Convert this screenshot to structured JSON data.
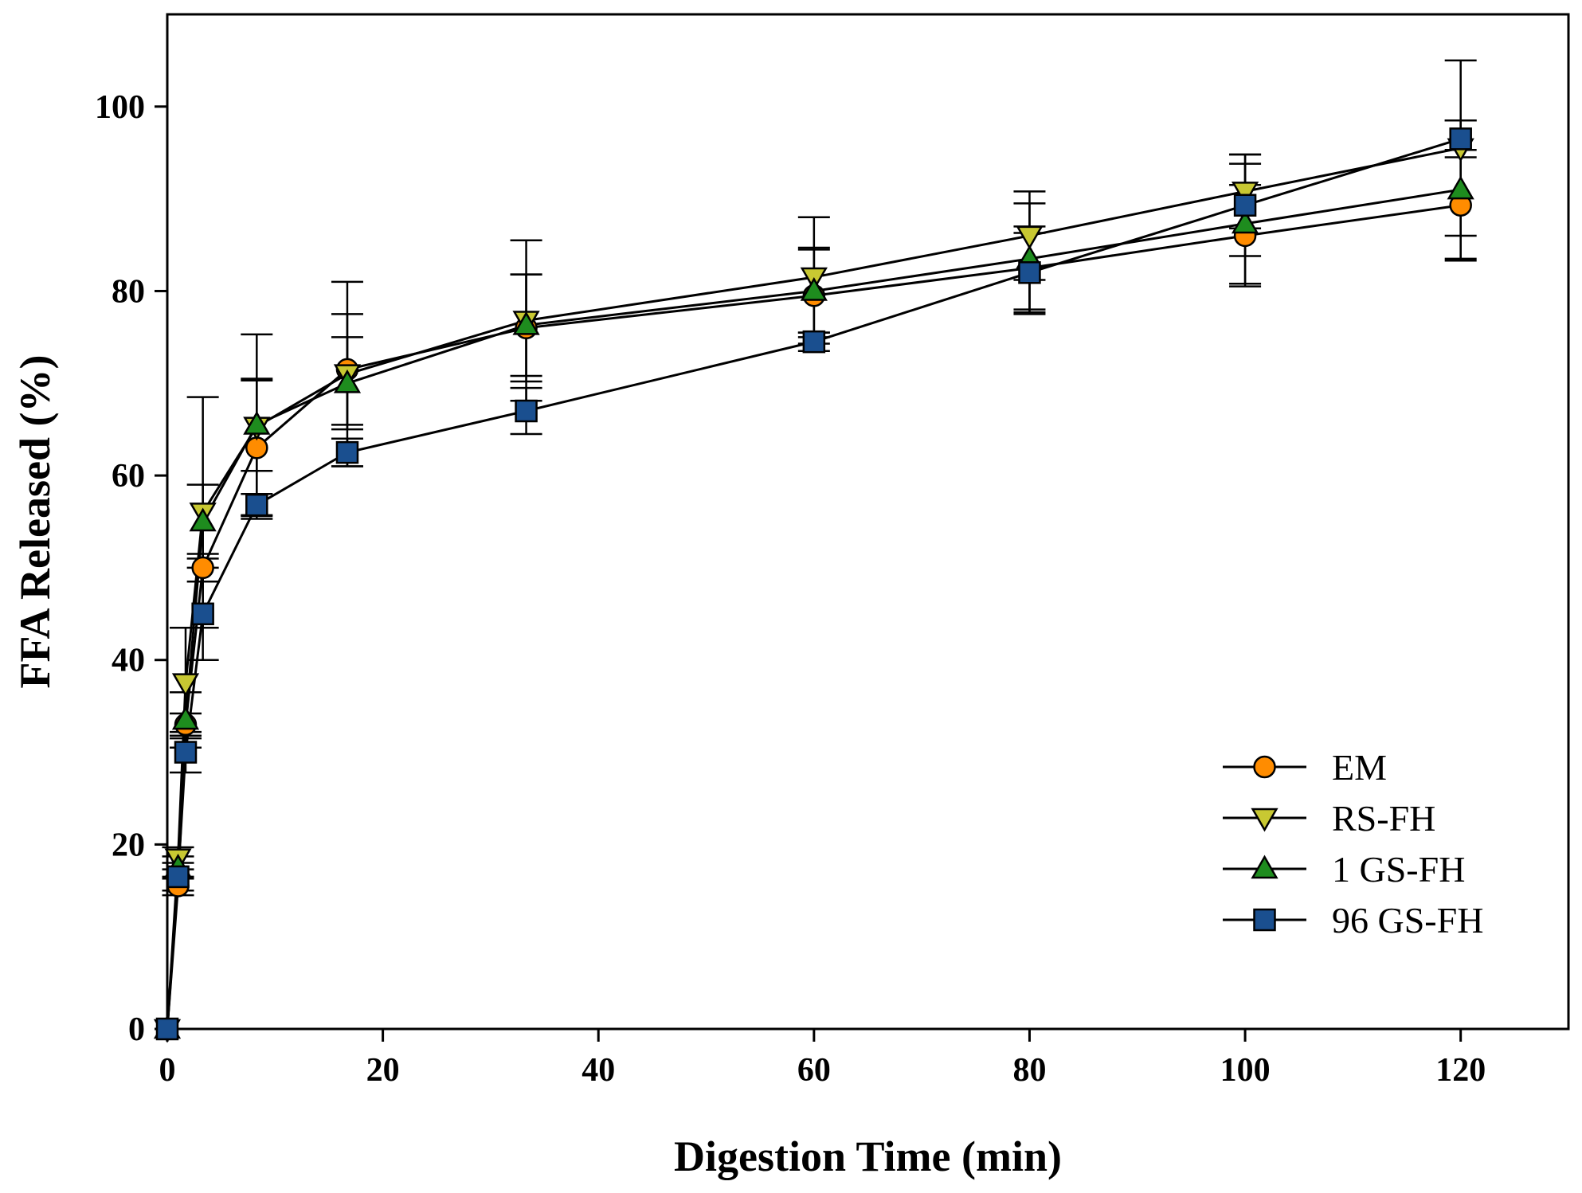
{
  "chart_data": {
    "type": "line",
    "title": "",
    "xlabel": "Digestion Time (min)",
    "ylabel": "FFA Released (%)",
    "xlim": [
      0,
      130
    ],
    "ylim": [
      0,
      110
    ],
    "xticks": [
      0,
      20,
      40,
      60,
      80,
      100,
      120
    ],
    "xtick_labels": [
      "0",
      "20",
      "40",
      "60",
      "80",
      "100",
      "120"
    ],
    "yticks": [
      0,
      20,
      40,
      60,
      80,
      100
    ],
    "ytick_labels": [
      "0",
      "20",
      "40",
      "60",
      "80",
      "100"
    ],
    "grid": false,
    "legend_position": "bottom-right",
    "x": [
      0,
      1,
      1.7,
      3.3,
      8.3,
      16.7,
      33.3,
      60,
      80,
      100,
      120
    ],
    "series": [
      {
        "name": "EM",
        "marker": "circle",
        "color": "#FF8C00",
        "values": [
          0,
          15.5,
          33,
          50,
          63,
          71.5,
          76,
          79.5,
          82.5,
          86,
          89.3
        ],
        "errors": [
          0,
          1,
          1.2,
          1.5,
          7.3,
          6,
          5.8,
          5.2,
          4.5,
          5.5,
          6
        ]
      },
      {
        "name": "RS-FH",
        "marker": "triangle-down",
        "color": "#C8C832",
        "values": [
          0,
          18.5,
          37.5,
          56,
          65.3,
          71,
          76.8,
          81.5,
          86,
          90.8,
          95.5
        ],
        "errors": [
          0,
          1.2,
          6,
          12.5,
          10,
          10,
          8.7,
          6.5,
          4.8,
          4,
          9.5
        ]
      },
      {
        "name": "1 GS-FH",
        "marker": "triangle-up",
        "color": "#1E8C1E",
        "values": [
          0,
          17.5,
          33.5,
          55,
          65.5,
          70,
          76.3,
          80,
          83.5,
          87.3,
          91
        ],
        "errors": [
          0,
          1.2,
          3,
          4,
          5,
          5,
          5.5,
          4.5,
          6,
          6.5,
          7.5
        ]
      },
      {
        "name": "96 GS-FH",
        "marker": "square",
        "color": "#1A4F8F",
        "values": [
          0,
          16.5,
          30,
          45,
          56.8,
          62.5,
          67,
          74.5,
          82,
          89.3,
          96.5
        ],
        "errors": [
          0,
          1.5,
          2.2,
          5,
          1.2,
          1.5,
          2.5,
          1,
          4.3,
          5.5,
          2
        ]
      }
    ]
  }
}
